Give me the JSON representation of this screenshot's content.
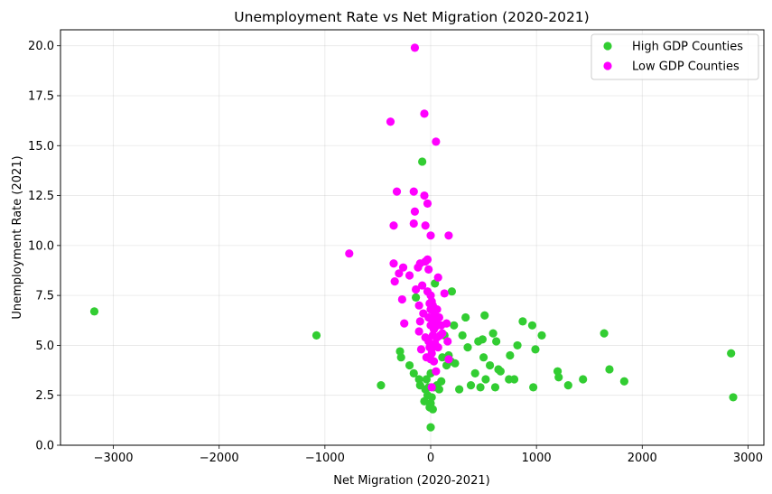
{
  "chart_data": {
    "type": "scatter",
    "title": "Unemployment Rate vs Net Migration (2020-2021)",
    "xlabel": "Net Migration (2020-2021)",
    "ylabel": "Unemployment Rate (2021)",
    "xlim": [
      -3500,
      3150
    ],
    "ylim": [
      0,
      20.8
    ],
    "xticks": [
      -3000,
      -2000,
      -1000,
      0,
      1000,
      2000,
      3000
    ],
    "yticks": [
      0.0,
      2.5,
      5.0,
      7.5,
      10.0,
      12.5,
      15.0,
      17.5,
      20.0
    ],
    "grid": true,
    "legend_position": "top-right",
    "series": [
      {
        "name": "High GDP Counties",
        "color": "#32cd32",
        "points": [
          [
            -3180,
            6.7
          ],
          [
            -1080,
            5.5
          ],
          [
            -470,
            3.0
          ],
          [
            -290,
            4.7
          ],
          [
            -280,
            4.4
          ],
          [
            -200,
            4.0
          ],
          [
            -160,
            3.6
          ],
          [
            -140,
            7.4
          ],
          [
            -110,
            3.3
          ],
          [
            -100,
            3.0
          ],
          [
            -80,
            14.2
          ],
          [
            -60,
            2.2
          ],
          [
            -50,
            2.8
          ],
          [
            -40,
            3.3
          ],
          [
            -30,
            2.5
          ],
          [
            -20,
            2.9
          ],
          [
            -10,
            1.9
          ],
          [
            0,
            0.9
          ],
          [
            0,
            2.1
          ],
          [
            0,
            3.6
          ],
          [
            10,
            2.4
          ],
          [
            20,
            1.8
          ],
          [
            30,
            2.9
          ],
          [
            40,
            8.1
          ],
          [
            60,
            3.0
          ],
          [
            80,
            2.8
          ],
          [
            100,
            3.2
          ],
          [
            110,
            4.4
          ],
          [
            130,
            5.5
          ],
          [
            150,
            4.0
          ],
          [
            170,
            4.5
          ],
          [
            190,
            4.2
          ],
          [
            200,
            7.7
          ],
          [
            220,
            6.0
          ],
          [
            230,
            4.1
          ],
          [
            270,
            2.8
          ],
          [
            300,
            5.5
          ],
          [
            330,
            6.4
          ],
          [
            350,
            4.9
          ],
          [
            380,
            3.0
          ],
          [
            420,
            3.6
          ],
          [
            450,
            5.2
          ],
          [
            470,
            2.9
          ],
          [
            490,
            5.3
          ],
          [
            500,
            4.4
          ],
          [
            510,
            6.5
          ],
          [
            520,
            3.3
          ],
          [
            560,
            4.0
          ],
          [
            590,
            5.6
          ],
          [
            610,
            2.9
          ],
          [
            620,
            5.2
          ],
          [
            640,
            3.8
          ],
          [
            660,
            3.7
          ],
          [
            740,
            3.3
          ],
          [
            750,
            4.5
          ],
          [
            790,
            3.3
          ],
          [
            820,
            5.0
          ],
          [
            870,
            6.2
          ],
          [
            960,
            6.0
          ],
          [
            970,
            2.9
          ],
          [
            990,
            4.8
          ],
          [
            1050,
            5.5
          ],
          [
            1200,
            3.7
          ],
          [
            1210,
            3.4
          ],
          [
            1300,
            3.0
          ],
          [
            1440,
            3.3
          ],
          [
            1640,
            5.6
          ],
          [
            1690,
            3.8
          ],
          [
            1830,
            3.2
          ],
          [
            2840,
            4.6
          ],
          [
            2860,
            2.4
          ]
        ]
      },
      {
        "name": "Low GDP Counties",
        "color": "#ff00ff",
        "points": [
          [
            -770,
            9.6
          ],
          [
            -380,
            16.2
          ],
          [
            -350,
            11.0
          ],
          [
            -350,
            9.1
          ],
          [
            -340,
            8.2
          ],
          [
            -320,
            12.7
          ],
          [
            -300,
            8.6
          ],
          [
            -270,
            7.3
          ],
          [
            -260,
            8.9
          ],
          [
            -250,
            6.1
          ],
          [
            -200,
            8.5
          ],
          [
            -160,
            12.7
          ],
          [
            -160,
            11.1
          ],
          [
            -150,
            11.7
          ],
          [
            -150,
            19.9
          ],
          [
            -140,
            7.8
          ],
          [
            -120,
            8.9
          ],
          [
            -110,
            7.0
          ],
          [
            -110,
            5.7
          ],
          [
            -100,
            9.1
          ],
          [
            -100,
            6.2
          ],
          [
            -90,
            4.8
          ],
          [
            -80,
            8.0
          ],
          [
            -70,
            6.6
          ],
          [
            -60,
            16.6
          ],
          [
            -60,
            12.5
          ],
          [
            -50,
            11.0
          ],
          [
            -50,
            9.2
          ],
          [
            -50,
            5.4
          ],
          [
            -40,
            4.4
          ],
          [
            -30,
            12.1
          ],
          [
            -30,
            9.3
          ],
          [
            -30,
            7.7
          ],
          [
            -20,
            8.8
          ],
          [
            -20,
            6.4
          ],
          [
            -20,
            5.2
          ],
          [
            -10,
            7.1
          ],
          [
            -10,
            4.9
          ],
          [
            0,
            10.5
          ],
          [
            0,
            7.5
          ],
          [
            0,
            6.8
          ],
          [
            0,
            6.0
          ],
          [
            0,
            5.0
          ],
          [
            0,
            4.3
          ],
          [
            10,
            7.2
          ],
          [
            10,
            6.3
          ],
          [
            10,
            4.6
          ],
          [
            10,
            2.9
          ],
          [
            20,
            7.0
          ],
          [
            20,
            5.5
          ],
          [
            20,
            4.9
          ],
          [
            30,
            6.5
          ],
          [
            30,
            5.8
          ],
          [
            30,
            4.2
          ],
          [
            40,
            6.7
          ],
          [
            40,
            5.9
          ],
          [
            40,
            5.1
          ],
          [
            50,
            15.2
          ],
          [
            50,
            6.2
          ],
          [
            50,
            3.7
          ],
          [
            60,
            6.8
          ],
          [
            60,
            5.4
          ],
          [
            70,
            8.4
          ],
          [
            70,
            4.9
          ],
          [
            80,
            6.4
          ],
          [
            90,
            5.5
          ],
          [
            100,
            6.0
          ],
          [
            110,
            5.6
          ],
          [
            130,
            7.6
          ],
          [
            150,
            6.1
          ],
          [
            160,
            5.2
          ],
          [
            170,
            10.5
          ],
          [
            170,
            4.3
          ]
        ]
      }
    ]
  }
}
